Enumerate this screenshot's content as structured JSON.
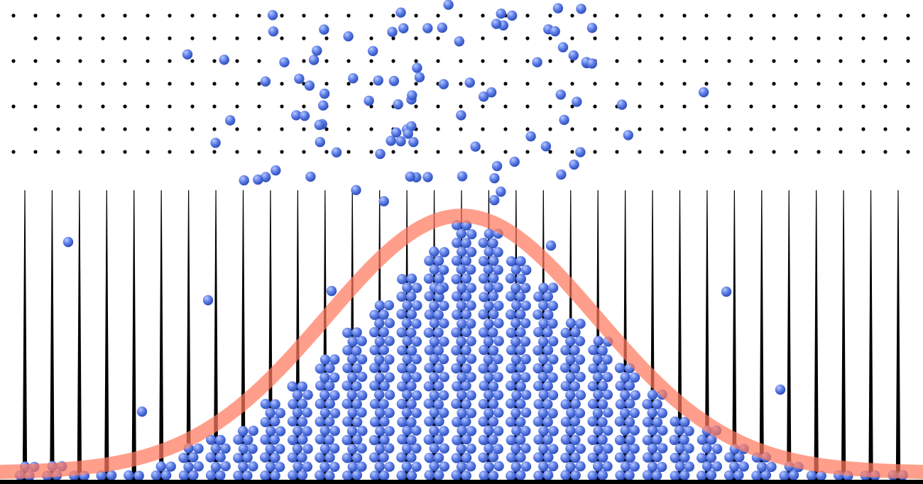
{
  "chart_data": {
    "type": "galton-board",
    "bins": 33,
    "bin_counts": [
      2,
      2,
      1,
      1,
      1,
      2,
      4,
      5,
      7,
      10,
      12,
      15,
      18,
      22,
      25,
      28,
      31,
      30,
      27,
      24,
      20,
      17,
      14,
      11,
      8,
      6,
      4,
      3,
      2,
      1,
      1,
      1,
      1
    ],
    "curve": "normal",
    "title": "",
    "xlabel": "",
    "ylabel": ""
  },
  "colors": {
    "background": "#ffffff",
    "peg": "#000000",
    "divider": "#000000",
    "ball": "#5a7be6",
    "ball_highlight": "#b8c8ff",
    "ball_shadow": "#2f4fb8",
    "curve": "#ff7a5e",
    "floor": "#000000"
  }
}
